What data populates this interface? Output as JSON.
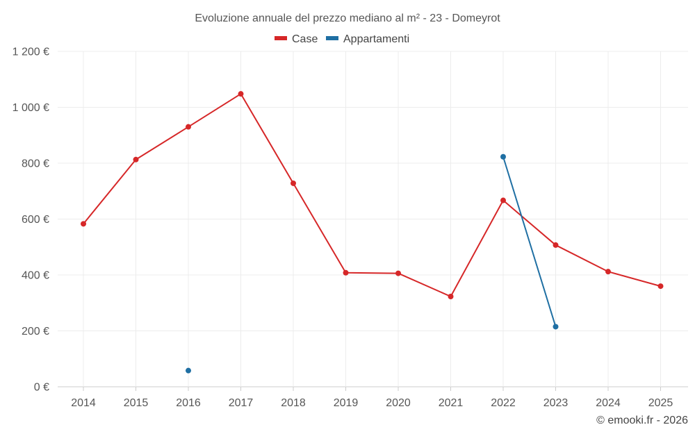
{
  "chart_data": {
    "type": "line",
    "title": "Evoluzione annuale del prezzo mediano al m² - 23 - Domeyrot",
    "categories": [
      "2014",
      "2015",
      "2016",
      "2017",
      "2018",
      "2019",
      "2020",
      "2021",
      "2022",
      "2023",
      "2024",
      "2025"
    ],
    "ylim": [
      0,
      1200
    ],
    "yticks": [
      0,
      200,
      400,
      600,
      800,
      1000,
      1200
    ],
    "ytick_labels": [
      "0 €",
      "200 €",
      "400 €",
      "600 €",
      "800 €",
      "1 000 €",
      "1 200 €"
    ],
    "series": [
      {
        "name": "Case",
        "color": "#d62728",
        "values": [
          583,
          813,
          930,
          1048,
          728,
          408,
          406,
          323,
          667,
          507,
          412,
          360
        ]
      },
      {
        "name": "Appartamenti",
        "color": "#1f6fa3",
        "values": [
          null,
          null,
          58,
          null,
          null,
          null,
          null,
          null,
          823,
          215,
          null,
          null
        ]
      }
    ],
    "legend_position": "top-center",
    "grid": true
  },
  "footer": {
    "credit": "© emooki.fr - 2026"
  }
}
